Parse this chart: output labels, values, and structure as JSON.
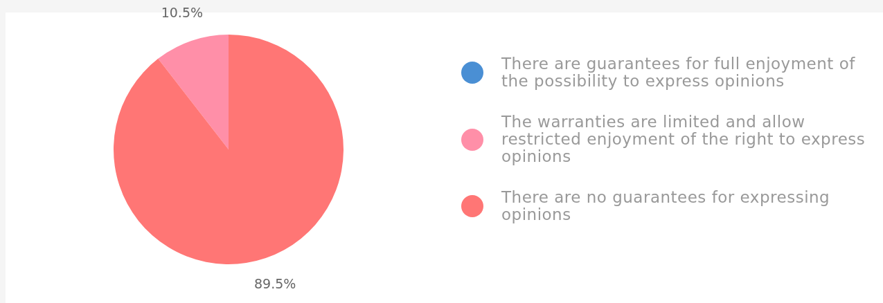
{
  "chart_data": {
    "type": "pie",
    "categories": [
      "There are guarantees for full enjoyment of the possibility to express opinions",
      "The warranties are limited and allow restricted enjoyment of the right to express opinions",
      "There are no guarantees for expressing opinions"
    ],
    "values": [
      0,
      10.5,
      89.5
    ],
    "colors": [
      "#4a8fd4",
      "#ff8fa8",
      "#ff7675"
    ],
    "value_labels": [
      null,
      "10.5%",
      "89.5%"
    ],
    "legend": "right"
  }
}
